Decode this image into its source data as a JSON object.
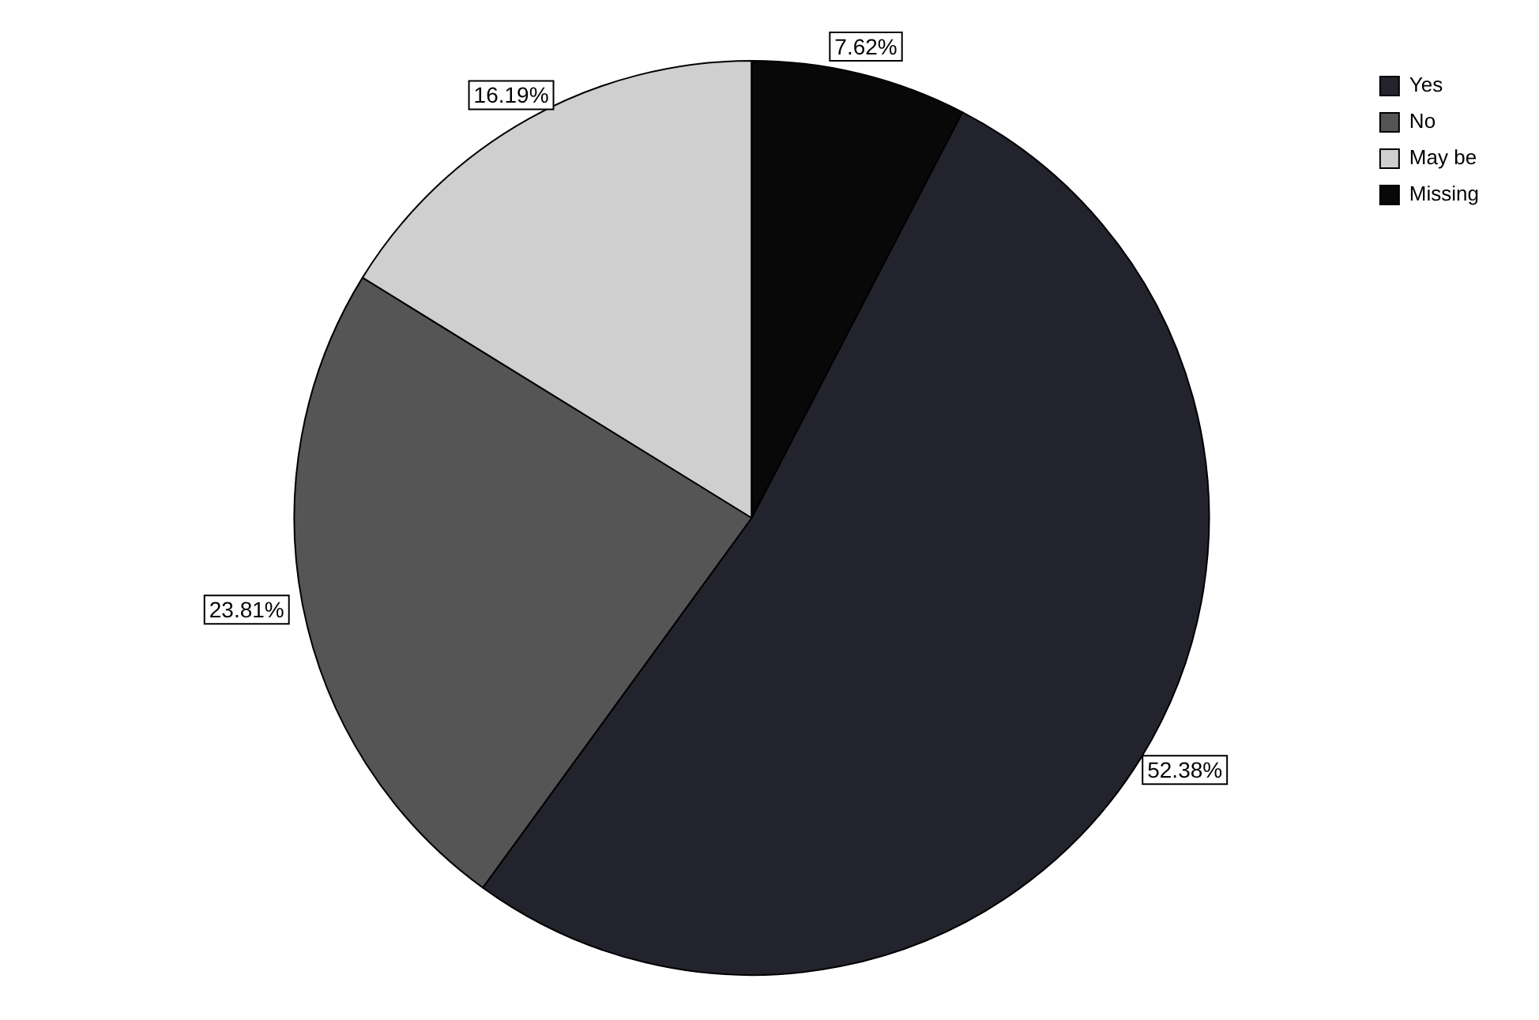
{
  "chart_data": {
    "type": "pie",
    "categories": [
      "Yes",
      "No",
      "May be",
      "Missing"
    ],
    "values": [
      52.38,
      23.81,
      16.19,
      7.62
    ],
    "colors": [
      "#23232e",
      "#555555",
      "#cfcfcf",
      "#080808"
    ],
    "value_labels": [
      "52.38%",
      "23.81%",
      "16.19%",
      "7.62%"
    ],
    "legend": "top right"
  }
}
